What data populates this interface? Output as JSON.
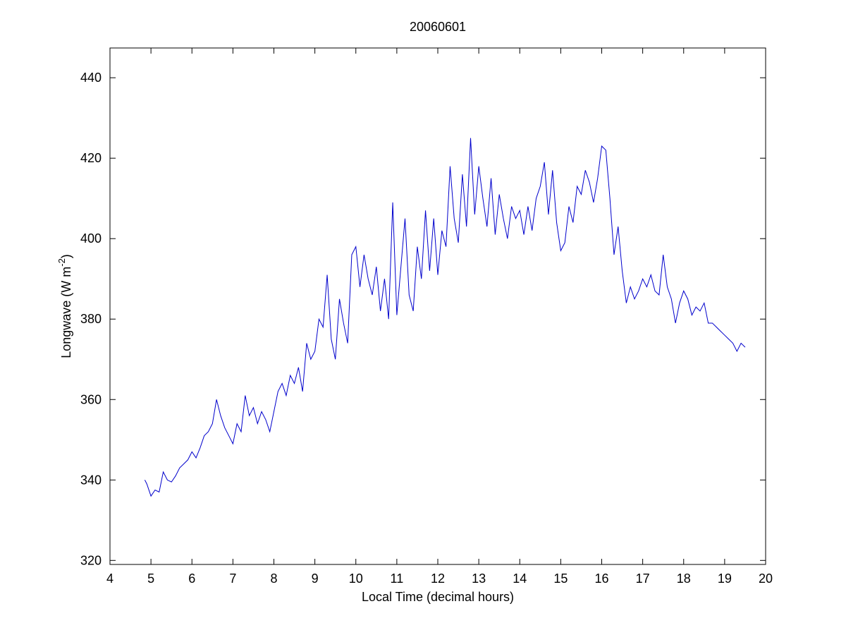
{
  "chart_data": {
    "type": "line",
    "title": "20060601",
    "xlabel": "Local Time (decimal hours)",
    "ylabel": {
      "text": "Longwave (W m",
      "superscript": "-2",
      "suffix": ")"
    },
    "xlim": [
      4,
      20
    ],
    "xticks": [
      4,
      5,
      6,
      7,
      8,
      9,
      10,
      11,
      12,
      13,
      14,
      15,
      16,
      17,
      18,
      19,
      20
    ],
    "ylim": [
      319,
      447.4
    ],
    "yticks": [
      320,
      340,
      360,
      380,
      400,
      420,
      440
    ],
    "grid": false,
    "series": [
      {
        "name": "Longwave",
        "color": "#0000cc",
        "x": [
          4.85,
          4.9,
          5.0,
          5.1,
          5.2,
          5.3,
          5.4,
          5.5,
          5.6,
          5.7,
          5.8,
          5.9,
          6.0,
          6.1,
          6.2,
          6.3,
          6.4,
          6.5,
          6.6,
          6.7,
          6.8,
          6.9,
          7.0,
          7.1,
          7.2,
          7.3,
          7.4,
          7.5,
          7.6,
          7.7,
          7.8,
          7.9,
          8.0,
          8.1,
          8.2,
          8.3,
          8.4,
          8.5,
          8.6,
          8.7,
          8.8,
          8.9,
          9.0,
          9.1,
          9.2,
          9.3,
          9.4,
          9.5,
          9.6,
          9.7,
          9.8,
          9.9,
          10.0,
          10.1,
          10.2,
          10.3,
          10.4,
          10.5,
          10.6,
          10.7,
          10.8,
          10.9,
          11.0,
          11.1,
          11.2,
          11.3,
          11.4,
          11.5,
          11.6,
          11.7,
          11.8,
          11.9,
          12.0,
          12.1,
          12.2,
          12.3,
          12.4,
          12.5,
          12.6,
          12.7,
          12.8,
          12.9,
          13.0,
          13.1,
          13.2,
          13.3,
          13.4,
          13.5,
          13.6,
          13.7,
          13.8,
          13.9,
          14.0,
          14.1,
          14.2,
          14.3,
          14.4,
          14.5,
          14.6,
          14.7,
          14.8,
          14.9,
          15.0,
          15.1,
          15.2,
          15.3,
          15.4,
          15.5,
          15.6,
          15.7,
          15.8,
          15.9,
          16.0,
          16.1,
          16.2,
          16.3,
          16.4,
          16.5,
          16.6,
          16.7,
          16.8,
          16.9,
          17.0,
          17.1,
          17.2,
          17.3,
          17.4,
          17.5,
          17.6,
          17.7,
          17.8,
          17.9,
          18.0,
          18.1,
          18.2,
          18.3,
          18.4,
          18.5,
          18.6,
          18.7,
          18.8,
          18.9,
          19.0,
          19.1,
          19.2,
          19.3,
          19.4,
          19.5
        ],
        "values": [
          340,
          339,
          336,
          337.5,
          337,
          342,
          340,
          339.5,
          341,
          343,
          344,
          345,
          347,
          345.5,
          348,
          351,
          352,
          354,
          360,
          356,
          353,
          351,
          349,
          354,
          352,
          361,
          356,
          358,
          354,
          357,
          355,
          352,
          357,
          362,
          364,
          361,
          366,
          364,
          368,
          362,
          374,
          370,
          372,
          380,
          378,
          391,
          375,
          370,
          385,
          379,
          374,
          396,
          398,
          388,
          396,
          390,
          386,
          393,
          382,
          390,
          380,
          409,
          381,
          393,
          405,
          386,
          382,
          398,
          390,
          407,
          392,
          405,
          391,
          402,
          398,
          418,
          405,
          399,
          416,
          403,
          425,
          406,
          418,
          410,
          403,
          415,
          401,
          411,
          405,
          400,
          408,
          405,
          407,
          401,
          408,
          402,
          410,
          413,
          419,
          406,
          417,
          404,
          397,
          399,
          408,
          404,
          413,
          411,
          417,
          414,
          409,
          415,
          423,
          422,
          410,
          396,
          403,
          392,
          384,
          388,
          385,
          387,
          390,
          388,
          391,
          387,
          386,
          396,
          388,
          385,
          379,
          384,
          387,
          385,
          381,
          383,
          382,
          384,
          379,
          379,
          378,
          377,
          376,
          375,
          374,
          372,
          374,
          373
        ]
      }
    ]
  }
}
